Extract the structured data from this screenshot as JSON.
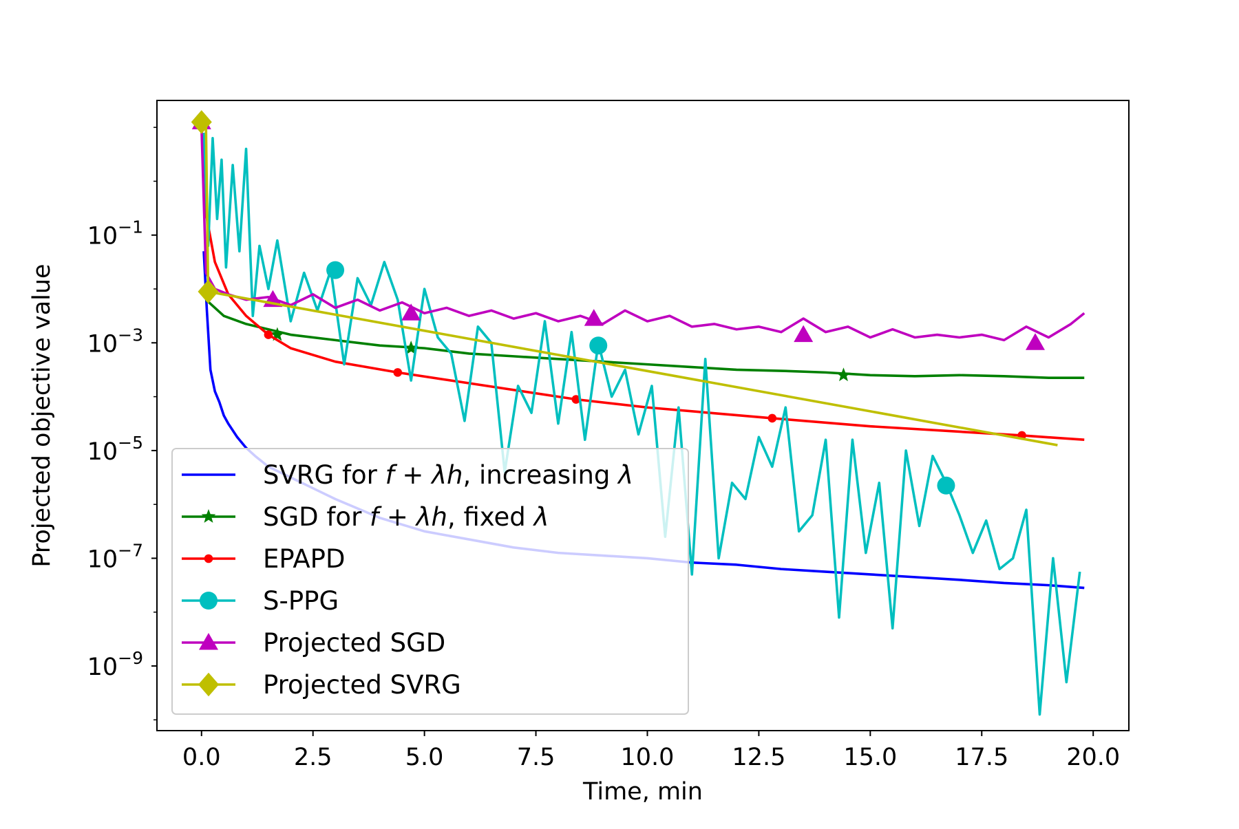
{
  "chart_data": {
    "type": "line",
    "title": "",
    "xlabel": "Time, min",
    "ylabel": "Projected objective value",
    "xlim": [
      -1.0,
      20.8
    ],
    "ylim_log10": [
      -10.2,
      1.5
    ],
    "yscale": "log",
    "grid": false,
    "legend_location": "lower-left",
    "x_ticks": [
      0.0,
      2.5,
      5.0,
      7.5,
      10.0,
      12.5,
      15.0,
      17.5,
      20.0
    ],
    "x_tick_labels": [
      "0.0",
      "2.5",
      "5.0",
      "7.5",
      "10.0",
      "12.5",
      "15.0",
      "17.5",
      "20.0"
    ],
    "y_ticks_log10": [
      -9,
      -7,
      -5,
      -3,
      -1
    ],
    "y_tick_base": "10",
    "y_tick_exponents": [
      "−9",
      "−7",
      "−5",
      "−3",
      "−1"
    ],
    "series": [
      {
        "name": "SVRG for f+λh, increasing λ",
        "legend_label": {
          "prefix": "SVRG for ",
          "math": "f + λh",
          "suffix": ", increasing ",
          "tail": "λ"
        },
        "color": "#0000ff",
        "marker": "none",
        "x": [
          0.05,
          0.12,
          0.2,
          0.3,
          0.4,
          0.5,
          0.6,
          0.8,
          1.0,
          1.2,
          1.5,
          2.0,
          2.5,
          3.0,
          4.0,
          5.0,
          6.0,
          7.0,
          8.0,
          9.0,
          10.0,
          11.0,
          12.0,
          13.0,
          14.0,
          15.0,
          16.0,
          17.0,
          18.0,
          19.0,
          19.8
        ],
        "log10_y": [
          -1.3,
          -2.4,
          -3.5,
          -3.9,
          -4.1,
          -4.35,
          -4.5,
          -4.75,
          -4.95,
          -5.1,
          -5.3,
          -5.5,
          -5.7,
          -5.9,
          -6.25,
          -6.5,
          -6.65,
          -6.8,
          -6.9,
          -6.95,
          -7.0,
          -7.08,
          -7.12,
          -7.2,
          -7.25,
          -7.3,
          -7.35,
          -7.4,
          -7.46,
          -7.5,
          -7.55
        ],
        "markers_x": [],
        "markers_log10_y": []
      },
      {
        "name": "SGD for f+λh, fixed λ",
        "legend_label": {
          "prefix": "SGD for ",
          "math": "f + λh",
          "suffix": ", fixed ",
          "tail": "λ"
        },
        "color": "#008000",
        "marker": "star",
        "x": [
          0.1,
          0.5,
          1.0,
          1.5,
          2.0,
          3.0,
          4.0,
          5.0,
          6.0,
          7.0,
          8.0,
          9.0,
          10.0,
          11.0,
          12.0,
          13.0,
          14.0,
          15.0,
          16.0,
          17.0,
          18.0,
          19.0,
          19.8
        ],
        "log10_y": [
          -2.2,
          -2.5,
          -2.65,
          -2.75,
          -2.85,
          -2.95,
          -3.05,
          -3.1,
          -3.2,
          -3.25,
          -3.3,
          -3.35,
          -3.4,
          -3.45,
          -3.5,
          -3.52,
          -3.55,
          -3.6,
          -3.62,
          -3.6,
          -3.62,
          -3.65,
          -3.65
        ],
        "markers_x": [
          1.7,
          4.7,
          14.4
        ],
        "markers_log10_y": [
          -2.85,
          -3.1,
          -3.6
        ]
      },
      {
        "name": "EPAPD",
        "legend_label": {
          "prefix": "EPAPD",
          "math": "",
          "suffix": "",
          "tail": ""
        },
        "color": "#ff0000",
        "marker": "dot",
        "x": [
          0.05,
          0.1,
          0.3,
          0.6,
          1.0,
          1.5,
          2.0,
          3.0,
          4.4,
          6.0,
          8.4,
          10.0,
          12.8,
          15.0,
          18.4,
          19.8
        ],
        "log10_y": [
          0.6,
          -0.6,
          -1.5,
          -2.1,
          -2.5,
          -2.85,
          -3.1,
          -3.35,
          -3.55,
          -3.75,
          -4.05,
          -4.2,
          -4.4,
          -4.55,
          -4.72,
          -4.8
        ],
        "markers_x": [
          1.5,
          4.4,
          8.4,
          12.8,
          18.4
        ],
        "markers_log10_y": [
          -2.85,
          -3.55,
          -4.05,
          -4.4,
          -4.72
        ]
      },
      {
        "name": "S-PPG",
        "legend_label": {
          "prefix": "S-PPG",
          "math": "",
          "suffix": "",
          "tail": ""
        },
        "color": "#00bfbf",
        "marker": "circle",
        "x": [
          0.05,
          0.15,
          0.25,
          0.35,
          0.45,
          0.55,
          0.7,
          0.85,
          1.0,
          1.15,
          1.3,
          1.5,
          1.7,
          2.0,
          2.3,
          2.6,
          2.9,
          3.2,
          3.5,
          3.8,
          4.1,
          4.4,
          4.7,
          5.0,
          5.3,
          5.6,
          5.9,
          6.2,
          6.5,
          6.8,
          7.1,
          7.4,
          7.7,
          8.0,
          8.3,
          8.6,
          8.9,
          9.2,
          9.5,
          9.8,
          10.1,
          10.4,
          10.7,
          11.0,
          11.3,
          11.6,
          11.9,
          12.2,
          12.5,
          12.8,
          13.1,
          13.4,
          13.7,
          14.0,
          14.3,
          14.6,
          14.9,
          15.2,
          15.5,
          15.8,
          16.1,
          16.4,
          16.7,
          17.0,
          17.3,
          17.6,
          17.9,
          18.2,
          18.5,
          18.8,
          19.1,
          19.4,
          19.7
        ],
        "log10_y": [
          0.9,
          -1.2,
          0.8,
          -0.7,
          0.4,
          -1.6,
          0.3,
          -1.3,
          0.6,
          -2.5,
          -1.2,
          -2.0,
          -1.1,
          -2.6,
          -1.7,
          -2.4,
          -1.65,
          -3.4,
          -1.8,
          -2.3,
          -1.5,
          -2.2,
          -3.7,
          -2.0,
          -2.9,
          -3.2,
          -4.45,
          -2.7,
          -3.0,
          -5.4,
          -3.8,
          -4.3,
          -2.6,
          -4.5,
          -2.8,
          -4.8,
          -3.0,
          -4.0,
          -3.5,
          -4.7,
          -3.8,
          -6.6,
          -4.2,
          -7.3,
          -3.3,
          -7.0,
          -5.6,
          -5.9,
          -4.75,
          -5.3,
          -4.2,
          -6.5,
          -6.2,
          -4.8,
          -8.1,
          -4.8,
          -6.9,
          -5.6,
          -8.3,
          -5.0,
          -6.4,
          -5.1,
          -5.6,
          -6.2,
          -6.9,
          -6.3,
          -7.2,
          -7.0,
          -6.1,
          -9.9,
          -7.0,
          -9.3,
          -7.25
        ],
        "markers_x": [
          3.0,
          8.9,
          16.7
        ],
        "markers_log10_y": [
          -1.65,
          -3.05,
          -5.65
        ]
      },
      {
        "name": "Projected SGD",
        "legend_label": {
          "prefix": "Projected SGD",
          "math": "",
          "suffix": "",
          "tail": ""
        },
        "color": "#bf00bf",
        "marker": "triangle",
        "x": [
          0.0,
          0.1,
          0.3,
          0.6,
          1.0,
          1.5,
          2.0,
          2.5,
          3.0,
          3.5,
          4.0,
          4.5,
          5.0,
          5.5,
          6.0,
          6.5,
          7.0,
          7.5,
          8.0,
          8.5,
          9.0,
          9.5,
          10.0,
          10.5,
          11.0,
          11.5,
          12.0,
          12.5,
          13.0,
          13.5,
          14.0,
          14.5,
          15.0,
          15.5,
          16.0,
          16.5,
          17.0,
          17.5,
          18.0,
          18.5,
          19.0,
          19.5,
          19.8
        ],
        "log10_y": [
          1.0,
          -1.7,
          -2.0,
          -2.1,
          -2.2,
          -2.15,
          -2.3,
          -2.1,
          -2.35,
          -2.2,
          -2.4,
          -2.25,
          -2.45,
          -2.35,
          -2.5,
          -2.4,
          -2.55,
          -2.45,
          -2.6,
          -2.5,
          -2.65,
          -2.4,
          -2.6,
          -2.5,
          -2.7,
          -2.65,
          -2.75,
          -2.7,
          -2.8,
          -2.55,
          -2.8,
          -2.7,
          -2.9,
          -2.75,
          -2.9,
          -2.85,
          -2.9,
          -2.85,
          -2.95,
          -2.7,
          -2.9,
          -2.65,
          -2.45
        ],
        "markers_x": [
          0.0,
          1.6,
          4.7,
          8.8,
          13.5,
          18.7
        ],
        "markers_log10_y": [
          1.1,
          -2.2,
          -2.45,
          -2.55,
          -2.85,
          -3.0
        ]
      },
      {
        "name": "Projected SVRG",
        "legend_label": {
          "prefix": "Projected SVRG",
          "math": "",
          "suffix": "",
          "tail": ""
        },
        "color": "#bfbf00",
        "marker": "diamond",
        "x": [
          0.0,
          0.1,
          0.15,
          19.2
        ],
        "log10_y": [
          1.1,
          1.0,
          -2.05,
          -4.9
        ],
        "markers_x": [
          0.0,
          0.15
        ],
        "markers_log10_y": [
          1.1,
          -2.05
        ]
      }
    ]
  }
}
